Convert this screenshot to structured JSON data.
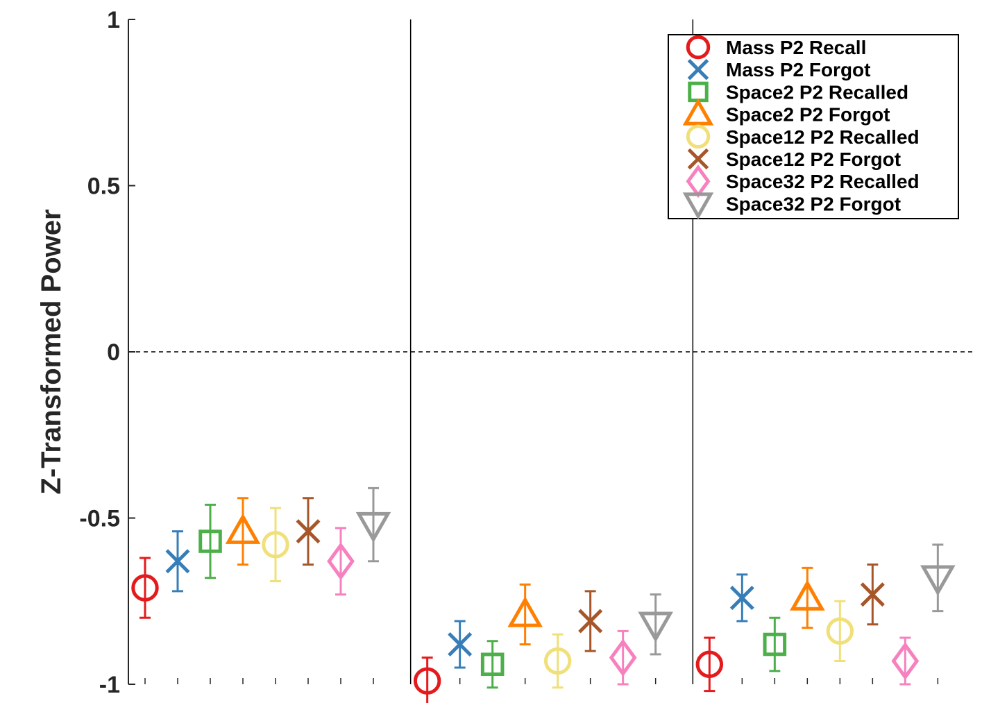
{
  "chart_data": {
    "type": "scatter",
    "ylabel": "Z-Transformed Power",
    "ylim": [
      -1,
      1
    ],
    "yticks": [
      {
        "value": -1,
        "label": "-1"
      },
      {
        "value": -0.5,
        "label": "-0.5"
      },
      {
        "value": 0,
        "label": "0"
      },
      {
        "value": 0.5,
        "label": "0.5"
      },
      {
        "value": 1,
        "label": "1"
      }
    ],
    "reference_line": {
      "y": 0,
      "style": "dashed"
    },
    "groups": 3,
    "legend_position": "top-right",
    "series": [
      {
        "name": "Mass P2 Recall",
        "marker": "circle",
        "color": "#e41a1c",
        "values": [
          -0.71,
          -0.99,
          -0.94
        ],
        "err": [
          0.09,
          0.07,
          0.08
        ]
      },
      {
        "name": "Mass P2 Forgot",
        "marker": "x",
        "color": "#377eb8",
        "values": [
          -0.63,
          -0.88,
          -0.74
        ],
        "err": [
          0.09,
          0.07,
          0.07
        ]
      },
      {
        "name": "Space2 P2 Recalled",
        "marker": "square",
        "color": "#4daf4a",
        "values": [
          -0.57,
          -0.94,
          -0.88
        ],
        "err": [
          0.11,
          0.07,
          0.08
        ]
      },
      {
        "name": "Space2 P2 Forgot",
        "marker": "triangle-up",
        "color": "#ff7f00",
        "values": [
          -0.54,
          -0.79,
          -0.74
        ],
        "err": [
          0.1,
          0.09,
          0.09
        ]
      },
      {
        "name": "Space12 P2 Recalled",
        "marker": "circle",
        "color": "#f0e07a",
        "values": [
          -0.58,
          -0.93,
          -0.84
        ],
        "err": [
          0.11,
          0.08,
          0.09
        ]
      },
      {
        "name": "Space12 P2 Forgot",
        "marker": "x",
        "color": "#a65628",
        "values": [
          -0.54,
          -0.81,
          -0.73
        ],
        "err": [
          0.1,
          0.09,
          0.09
        ]
      },
      {
        "name": "Space32 P2 Recalled",
        "marker": "diamond",
        "color": "#f781bf",
        "values": [
          -0.63,
          -0.92,
          -0.93
        ],
        "err": [
          0.1,
          0.08,
          0.07
        ]
      },
      {
        "name": "Space32 P2 Forgot",
        "marker": "triangle-down",
        "color": "#999999",
        "values": [
          -0.52,
          -0.82,
          -0.68
        ],
        "err": [
          0.11,
          0.09,
          0.1
        ]
      }
    ]
  }
}
